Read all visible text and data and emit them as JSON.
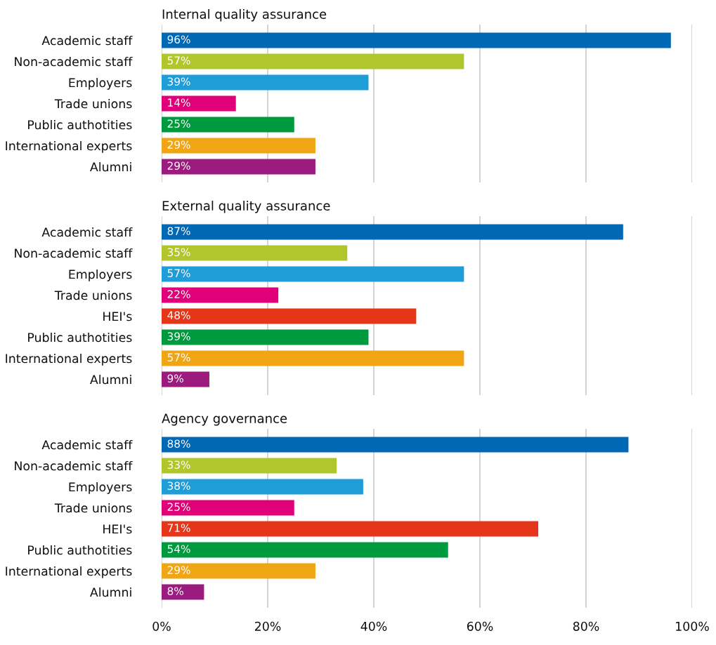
{
  "chart_data": [
    {
      "type": "bar",
      "orientation": "horizontal",
      "title": "Internal quality assurance",
      "categories": [
        "Academic staff",
        "Non-academic staff",
        "Employers",
        "Trade unions",
        "Public authotities",
        "International experts",
        "Alumni"
      ],
      "values": [
        96,
        57,
        39,
        14,
        25,
        29,
        29
      ],
      "value_labels": [
        "96%",
        "57%",
        "39%",
        "14%",
        "25%",
        "29%",
        "29%"
      ],
      "colors": [
        "#0068b4",
        "#b1c62c",
        "#1e9dd8",
        "#e2007a",
        "#009a3e",
        "#f0a515",
        "#9b1b7e"
      ],
      "xlim": [
        0,
        100
      ],
      "xticks": [
        {
          "value": 0,
          "label": null
        },
        {
          "value": 20,
          "label": null
        },
        {
          "value": 40,
          "label": null
        },
        {
          "value": 60,
          "label": null
        },
        {
          "value": 80,
          "label": null
        },
        {
          "value": 100,
          "label": null
        }
      ],
      "grid": "x",
      "tick_labels": "y"
    },
    {
      "type": "bar",
      "orientation": "horizontal",
      "title": "External quality assurance",
      "categories": [
        "Academic staff",
        "Non-academic staff",
        "Employers",
        "Trade unions",
        "HEI's",
        "Public authotities",
        "International experts",
        "Alumni"
      ],
      "values": [
        87,
        35,
        57,
        22,
        48,
        39,
        57,
        9
      ],
      "value_labels": [
        "87%",
        "35%",
        "57%",
        "22%",
        "48%",
        "39%",
        "57%",
        "9%"
      ],
      "colors": [
        "#0068b4",
        "#b1c62c",
        "#1e9dd8",
        "#e2007a",
        "#e5361a",
        "#009a3e",
        "#f0a515",
        "#9b1b7e"
      ],
      "xlim": [
        0,
        100
      ],
      "xticks": [
        {
          "value": 0,
          "label": null
        },
        {
          "value": 20,
          "label": null
        },
        {
          "value": 40,
          "label": null
        },
        {
          "value": 60,
          "label": null
        },
        {
          "value": 80,
          "label": null
        },
        {
          "value": 100,
          "label": null
        }
      ],
      "grid": "x",
      "tick_labels": "y"
    },
    {
      "type": "bar",
      "orientation": "horizontal",
      "title": "Agency governance",
      "categories": [
        "Academic staff",
        "Non-academic staff",
        "Employers",
        "Trade unions",
        "HEI's",
        "Public authotities",
        "International experts",
        "Alumni"
      ],
      "values": [
        88,
        33,
        38,
        25,
        71,
        54,
        29,
        8
      ],
      "value_labels": [
        "88%",
        "33%",
        "38%",
        "25%",
        "71%",
        "54%",
        "29%",
        "8%"
      ],
      "colors": [
        "#0068b4",
        "#b1c62c",
        "#1e9dd8",
        "#e2007a",
        "#e5361a",
        "#009a3e",
        "#f0a515",
        "#9b1b7e"
      ],
      "xlim": [
        0,
        100
      ],
      "xticks": [
        {
          "value": 0,
          "label": "0%"
        },
        {
          "value": 20,
          "label": "20%"
        },
        {
          "value": 40,
          "label": "40%"
        },
        {
          "value": 60,
          "label": "60%"
        },
        {
          "value": 80,
          "label": "80%"
        },
        {
          "value": 100,
          "label": "100%"
        }
      ],
      "grid": "x"
    }
  ]
}
